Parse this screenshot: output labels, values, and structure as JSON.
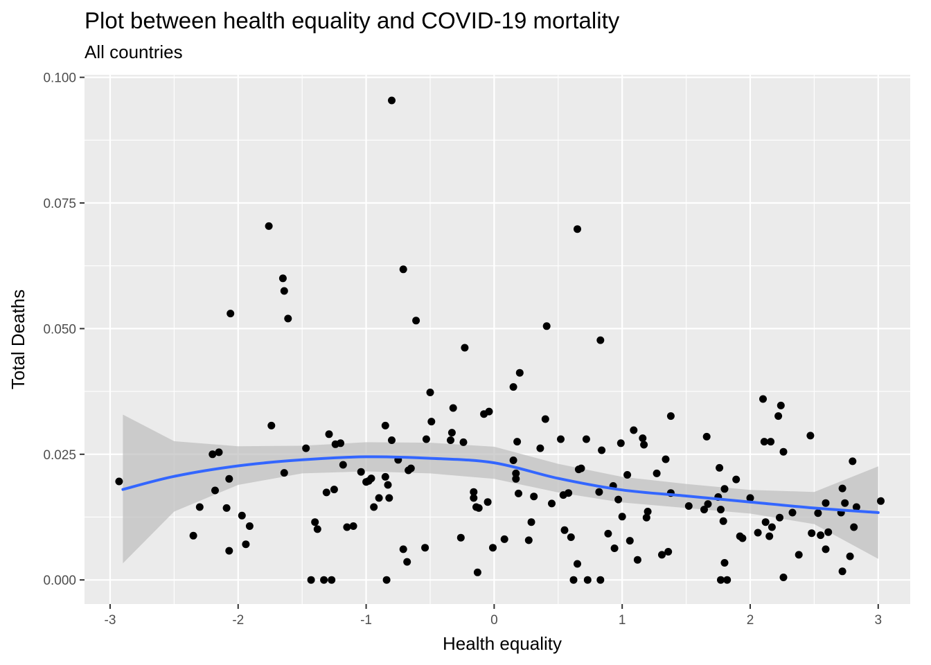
{
  "chart_data": {
    "type": "scatter",
    "title": "Plot between health equality and COVID-19 mortality",
    "subtitle": "All countries",
    "xlabel": "Health equality",
    "ylabel": "Total Deaths",
    "xlim": [
      -3.2,
      3.25
    ],
    "ylim": [
      -0.0048,
      0.1005
    ],
    "x_ticks": [
      -3,
      -2,
      -1,
      0,
      1,
      2,
      3
    ],
    "x_tick_labels": [
      "-3",
      "-2",
      "-1",
      "0",
      "1",
      "2",
      "3"
    ],
    "y_ticks": [
      0,
      0.025,
      0.05,
      0.075,
      0.1
    ],
    "y_tick_labels": [
      "0.000",
      "0.025",
      "0.050",
      "0.075",
      "0.100"
    ],
    "grid": true,
    "colors": {
      "panel": "#ebebeb",
      "grid": "#ffffff",
      "points": "#000000",
      "smooth_line": "#3366ff",
      "confidence_band": "#bdbdbd"
    },
    "points": [
      [
        -2.93,
        0.0196
      ],
      [
        -2.35,
        0.0088
      ],
      [
        -2.3,
        0.0145
      ],
      [
        -2.2,
        0.025
      ],
      [
        -2.18,
        0.0178
      ],
      [
        -2.15,
        0.0254
      ],
      [
        -2.09,
        0.0143
      ],
      [
        -2.07,
        0.0201
      ],
      [
        -2.07,
        0.0058
      ],
      [
        -2.06,
        0.053
      ],
      [
        -1.97,
        0.0128
      ],
      [
        -1.94,
        0.0071
      ],
      [
        -1.91,
        0.0107
      ],
      [
        -1.76,
        0.0704
      ],
      [
        -1.74,
        0.0307
      ],
      [
        -1.65,
        0.06
      ],
      [
        -1.64,
        0.0575
      ],
      [
        -1.64,
        0.0213
      ],
      [
        -1.61,
        0.052
      ],
      [
        -1.47,
        0.0262
      ],
      [
        -1.43,
        0.0
      ],
      [
        -1.4,
        0.0115
      ],
      [
        -1.38,
        0.0101
      ],
      [
        -1.33,
        0.0
      ],
      [
        -1.31,
        0.0174
      ],
      [
        -1.29,
        0.029
      ],
      [
        -1.27,
        0.0
      ],
      [
        -1.25,
        0.018
      ],
      [
        -1.24,
        0.027
      ],
      [
        -1.2,
        0.0272
      ],
      [
        -1.18,
        0.0229
      ],
      [
        -1.15,
        0.0105
      ],
      [
        -1.1,
        0.0107
      ],
      [
        -1.04,
        0.0215
      ],
      [
        -1.0,
        0.0195
      ],
      [
        -0.98,
        0.0197
      ],
      [
        -0.96,
        0.0202
      ],
      [
        -0.94,
        0.0145
      ],
      [
        -0.9,
        0.0163
      ],
      [
        -0.85,
        0.0307
      ],
      [
        -0.85,
        0.0205
      ],
      [
        -0.84,
        0.0
      ],
      [
        -0.83,
        0.0189
      ],
      [
        -0.82,
        0.0163
      ],
      [
        -0.8,
        0.0954
      ],
      [
        -0.8,
        0.0278
      ],
      [
        -0.75,
        0.0239
      ],
      [
        -0.71,
        0.0618
      ],
      [
        -0.71,
        0.0061
      ],
      [
        -0.68,
        0.0036
      ],
      [
        -0.67,
        0.0218
      ],
      [
        -0.65,
        0.0222
      ],
      [
        -0.61,
        0.0516
      ],
      [
        -0.54,
        0.0064
      ],
      [
        -0.53,
        0.028
      ],
      [
        -0.5,
        0.0373
      ],
      [
        -0.49,
        0.0315
      ],
      [
        -0.34,
        0.0278
      ],
      [
        -0.33,
        0.0293
      ],
      [
        -0.32,
        0.0342
      ],
      [
        -0.26,
        0.0084
      ],
      [
        -0.24,
        0.0274
      ],
      [
        -0.23,
        0.0462
      ],
      [
        -0.16,
        0.0175
      ],
      [
        -0.16,
        0.0163
      ],
      [
        -0.14,
        0.0145
      ],
      [
        -0.13,
        0.0015
      ],
      [
        -0.12,
        0.0143
      ],
      [
        -0.08,
        0.033
      ],
      [
        -0.05,
        0.0155
      ],
      [
        -0.04,
        0.0335
      ],
      [
        -0.01,
        0.0064
      ],
      [
        0.08,
        0.0081
      ],
      [
        0.15,
        0.0384
      ],
      [
        0.15,
        0.0238
      ],
      [
        0.17,
        0.0212
      ],
      [
        0.17,
        0.0201
      ],
      [
        0.18,
        0.0275
      ],
      [
        0.19,
        0.0172
      ],
      [
        0.2,
        0.0412
      ],
      [
        0.27,
        0.0079
      ],
      [
        0.29,
        0.0115
      ],
      [
        0.31,
        0.0166
      ],
      [
        0.36,
        0.0262
      ],
      [
        0.4,
        0.032
      ],
      [
        0.41,
        0.0505
      ],
      [
        0.45,
        0.0152
      ],
      [
        0.52,
        0.028
      ],
      [
        0.54,
        0.0169
      ],
      [
        0.55,
        0.0099
      ],
      [
        0.58,
        0.0173
      ],
      [
        0.6,
        0.0085
      ],
      [
        0.62,
        0.0
      ],
      [
        0.65,
        0.0698
      ],
      [
        0.65,
        0.0032
      ],
      [
        0.66,
        0.022
      ],
      [
        0.68,
        0.0222
      ],
      [
        0.72,
        0.028
      ],
      [
        0.73,
        0.0
      ],
      [
        0.82,
        0.0175
      ],
      [
        0.83,
        0.0477
      ],
      [
        0.83,
        0.0
      ],
      [
        0.84,
        0.0258
      ],
      [
        0.89,
        0.0092
      ],
      [
        0.93,
        0.0187
      ],
      [
        0.94,
        0.0063
      ],
      [
        0.97,
        0.016
      ],
      [
        0.99,
        0.0272
      ],
      [
        1.0,
        0.0126
      ],
      [
        1.04,
        0.0209
      ],
      [
        1.06,
        0.0078
      ],
      [
        1.09,
        0.0298
      ],
      [
        1.12,
        0.004
      ],
      [
        1.16,
        0.0282
      ],
      [
        1.17,
        0.0269
      ],
      [
        1.19,
        0.0124
      ],
      [
        1.2,
        0.0136
      ],
      [
        1.27,
        0.0212
      ],
      [
        1.31,
        0.005
      ],
      [
        1.34,
        0.024
      ],
      [
        1.36,
        0.0056
      ],
      [
        1.38,
        0.0326
      ],
      [
        1.38,
        0.0173
      ],
      [
        1.52,
        0.0147
      ],
      [
        1.64,
        0.014
      ],
      [
        1.66,
        0.0285
      ],
      [
        1.67,
        0.0151
      ],
      [
        1.75,
        0.0165
      ],
      [
        1.76,
        0.0223
      ],
      [
        1.77,
        0.0
      ],
      [
        1.77,
        0.014
      ],
      [
        1.79,
        0.0117
      ],
      [
        1.8,
        0.0181
      ],
      [
        1.8,
        0.0034
      ],
      [
        1.82,
        0.0
      ],
      [
        1.89,
        0.02
      ],
      [
        1.92,
        0.0087
      ],
      [
        1.94,
        0.0083
      ],
      [
        2.0,
        0.0163
      ],
      [
        2.06,
        0.0094
      ],
      [
        2.1,
        0.036
      ],
      [
        2.11,
        0.0275
      ],
      [
        2.12,
        0.0115
      ],
      [
        2.15,
        0.0087
      ],
      [
        2.16,
        0.0275
      ],
      [
        2.17,
        0.0105
      ],
      [
        2.22,
        0.0326
      ],
      [
        2.23,
        0.0124
      ],
      [
        2.24,
        0.0347
      ],
      [
        2.26,
        0.0255
      ],
      [
        2.26,
        0.0005
      ],
      [
        2.33,
        0.0134
      ],
      [
        2.38,
        0.005
      ],
      [
        2.47,
        0.0287
      ],
      [
        2.48,
        0.0093
      ],
      [
        2.53,
        0.0133
      ],
      [
        2.55,
        0.0089
      ],
      [
        2.59,
        0.0061
      ],
      [
        2.59,
        0.0153
      ],
      [
        2.61,
        0.0095
      ],
      [
        2.71,
        0.0134
      ],
      [
        2.72,
        0.0182
      ],
      [
        2.72,
        0.0017
      ],
      [
        2.74,
        0.0153
      ],
      [
        2.78,
        0.0047
      ],
      [
        2.8,
        0.0236
      ],
      [
        2.81,
        0.0105
      ],
      [
        2.83,
        0.0145
      ],
      [
        3.02,
        0.0157
      ]
    ],
    "smooth": {
      "x": [
        -2.9,
        -2.5,
        -2.0,
        -1.5,
        -1.0,
        -0.5,
        0.0,
        0.5,
        1.0,
        1.5,
        2.0,
        2.5,
        3.0
      ],
      "y": [
        0.018,
        0.0206,
        0.0227,
        0.0239,
        0.0245,
        0.0242,
        0.0233,
        0.0202,
        0.0179,
        0.0167,
        0.0155,
        0.0143,
        0.0134
      ],
      "lower": [
        0.0033,
        0.0136,
        0.0189,
        0.0212,
        0.0216,
        0.0212,
        0.0201,
        0.0174,
        0.0154,
        0.0143,
        0.0132,
        0.0111,
        0.0042
      ],
      "upper": [
        0.0329,
        0.0276,
        0.0266,
        0.0267,
        0.0274,
        0.0273,
        0.0265,
        0.0231,
        0.0205,
        0.0191,
        0.0179,
        0.0175,
        0.0226
      ]
    }
  }
}
